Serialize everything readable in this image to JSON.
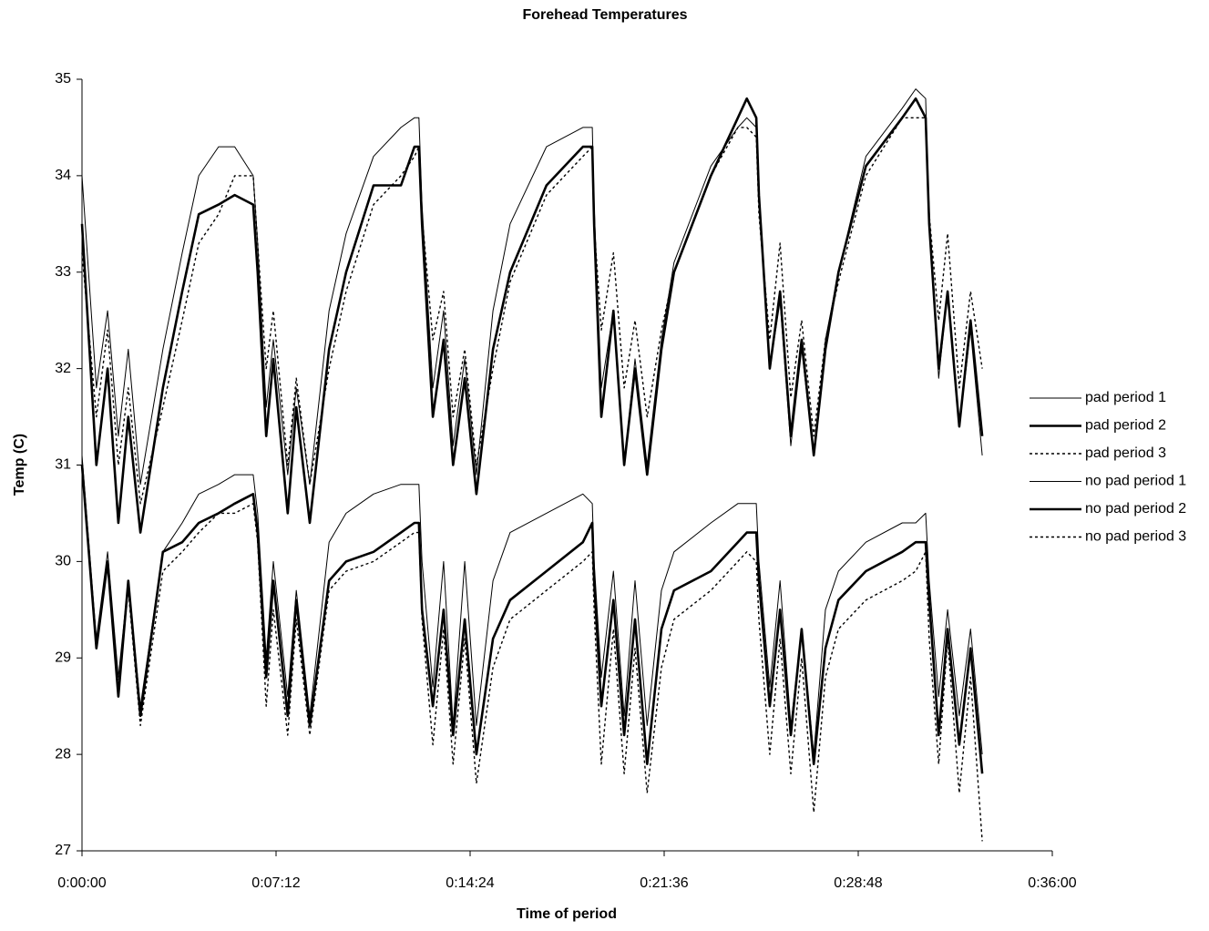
{
  "chart_data": {
    "type": "line",
    "title": "Forehead Temperatures",
    "x_label": "Time of period",
    "y_label": "Temp (C)",
    "x": [
      0,
      32,
      57,
      81,
      103,
      130,
      180,
      223,
      260,
      304,
      340,
      381,
      391,
      410,
      426,
      458,
      477,
      507,
      550,
      588,
      649,
      710,
      740,
      750,
      757,
      781,
      805,
      826,
      852,
      878,
      915,
      953,
      1034,
      1115,
      1136,
      1140,
      1156,
      1183,
      1207,
      1231,
      1258,
      1290,
      1318,
      1400,
      1460,
      1480,
      1501,
      1507,
      1531,
      1554,
      1578,
      1602,
      1629,
      1655,
      1684,
      1745,
      1826,
      1856,
      1878,
      1886,
      1907,
      1927,
      1953,
      1978,
      2004
    ],
    "series": [
      {
        "name": "pad period 1",
        "color": "#000000",
        "line_width": 1,
        "dashed": false,
        "values": [
          34.0,
          31.8,
          32.6,
          31.3,
          32.2,
          30.8,
          32.2,
          33.2,
          34.0,
          34.3,
          34.3,
          34.0,
          33.3,
          31.6,
          32.3,
          30.9,
          31.8,
          30.8,
          32.6,
          33.4,
          34.2,
          34.5,
          34.6,
          34.6,
          33.7,
          31.8,
          32.6,
          31.2,
          32.1,
          30.9,
          32.6,
          33.5,
          34.3,
          34.5,
          34.5,
          33.7,
          31.8,
          32.6,
          31.0,
          32.1,
          31.0,
          32.3,
          33.1,
          34.1,
          34.5,
          34.6,
          34.5,
          33.7,
          32.0,
          32.7,
          31.2,
          32.2,
          31.1,
          32.3,
          33.0,
          34.2,
          34.7,
          34.9,
          34.8,
          33.5,
          31.9,
          32.8,
          31.4,
          32.4,
          31.1
        ]
      },
      {
        "name": "pad period 2",
        "color": "#000000",
        "line_width": 2.6,
        "dashed": false,
        "values": [
          33.5,
          31.0,
          32.0,
          30.4,
          31.5,
          30.3,
          31.8,
          32.8,
          33.6,
          33.7,
          33.8,
          33.7,
          33.0,
          31.3,
          32.1,
          30.5,
          31.6,
          30.4,
          32.2,
          33.0,
          33.9,
          33.9,
          34.3,
          34.3,
          33.5,
          31.5,
          32.3,
          31.0,
          31.9,
          30.7,
          32.2,
          33.0,
          33.9,
          34.3,
          34.3,
          33.5,
          31.5,
          32.6,
          31.0,
          32.0,
          30.9,
          32.2,
          33.0,
          34.0,
          34.6,
          34.8,
          34.6,
          33.8,
          32.0,
          32.8,
          31.3,
          32.3,
          31.1,
          32.2,
          33.0,
          34.1,
          34.6,
          34.8,
          34.6,
          33.5,
          32.0,
          32.8,
          31.4,
          32.5,
          31.3
        ]
      },
      {
        "name": "pad period 3",
        "color": "#000000",
        "line_width": 1.4,
        "dashed": true,
        "values": [
          33.2,
          31.5,
          32.4,
          31.0,
          31.8,
          30.6,
          31.6,
          32.5,
          33.3,
          33.6,
          34.0,
          34.0,
          33.3,
          32.0,
          32.6,
          31.0,
          31.9,
          30.8,
          32.0,
          32.8,
          33.7,
          34.0,
          34.2,
          34.3,
          33.6,
          32.3,
          32.8,
          31.5,
          32.2,
          31.0,
          32.0,
          32.9,
          33.8,
          34.2,
          34.3,
          33.5,
          32.4,
          33.2,
          31.8,
          32.5,
          31.5,
          32.4,
          33.0,
          34.0,
          34.5,
          34.5,
          34.4,
          33.6,
          32.3,
          33.3,
          31.7,
          32.5,
          31.3,
          32.3,
          32.9,
          34.0,
          34.6,
          34.6,
          34.6,
          33.6,
          32.5,
          33.4,
          31.8,
          32.8,
          32.0
        ]
      },
      {
        "name": "no pad period 1",
        "color": "#000000",
        "line_width": 1,
        "dashed": false,
        "values": [
          31.1,
          29.2,
          30.1,
          28.8,
          29.8,
          28.5,
          30.1,
          30.4,
          30.7,
          30.8,
          30.9,
          30.9,
          30.5,
          29.0,
          30.0,
          28.6,
          29.7,
          28.4,
          30.2,
          30.5,
          30.7,
          30.8,
          30.8,
          30.8,
          30.0,
          28.7,
          30.0,
          28.3,
          30.0,
          28.3,
          29.8,
          30.3,
          30.5,
          30.7,
          30.6,
          30.0,
          28.8,
          29.9,
          28.4,
          29.8,
          28.3,
          29.7,
          30.1,
          30.4,
          30.6,
          30.6,
          30.6,
          30.0,
          28.7,
          29.8,
          28.3,
          29.3,
          28.0,
          29.5,
          29.9,
          30.2,
          30.4,
          30.4,
          30.5,
          29.8,
          28.6,
          29.5,
          28.4,
          29.3,
          28.0
        ]
      },
      {
        "name": "no pad period 2",
        "color": "#000000",
        "line_width": 2.6,
        "dashed": false,
        "values": [
          31.0,
          29.1,
          30.0,
          28.6,
          29.8,
          28.4,
          30.1,
          30.2,
          30.4,
          30.5,
          30.6,
          30.7,
          30.3,
          28.8,
          29.8,
          28.4,
          29.6,
          28.3,
          29.8,
          30.0,
          30.1,
          30.3,
          30.4,
          30.4,
          29.5,
          28.5,
          29.5,
          28.2,
          29.4,
          28.0,
          29.2,
          29.6,
          29.9,
          30.2,
          30.4,
          29.8,
          28.5,
          29.6,
          28.2,
          29.4,
          27.9,
          29.3,
          29.7,
          29.9,
          30.2,
          30.3,
          30.3,
          29.8,
          28.5,
          29.5,
          28.2,
          29.3,
          27.9,
          29.1,
          29.6,
          29.9,
          30.1,
          30.2,
          30.2,
          29.6,
          28.2,
          29.3,
          28.1,
          29.1,
          27.8
        ]
      },
      {
        "name": "no pad period 3",
        "color": "#000000",
        "line_width": 1.4,
        "dashed": true,
        "values": [
          31.0,
          29.1,
          30.0,
          28.7,
          29.7,
          28.3,
          29.9,
          30.1,
          30.3,
          30.5,
          30.5,
          30.6,
          30.2,
          28.5,
          29.5,
          28.2,
          29.4,
          28.2,
          29.7,
          29.9,
          30.0,
          30.2,
          30.3,
          30.3,
          29.4,
          28.1,
          29.3,
          27.9,
          29.2,
          27.7,
          28.9,
          29.4,
          29.7,
          30.0,
          30.1,
          29.5,
          27.9,
          29.3,
          27.8,
          29.1,
          27.6,
          28.9,
          29.4,
          29.7,
          30.0,
          30.1,
          30.0,
          29.4,
          28.0,
          29.2,
          27.8,
          29.0,
          27.4,
          28.8,
          29.3,
          29.6,
          29.8,
          29.9,
          30.1,
          29.2,
          27.9,
          29.2,
          27.6,
          28.8,
          27.1
        ]
      }
    ],
    "xlim": [
      0,
      2160
    ],
    "xticks": [
      {
        "value": 0,
        "label": "0:00:00"
      },
      {
        "value": 432,
        "label": "0:07:12"
      },
      {
        "value": 864,
        "label": "0:14:24"
      },
      {
        "value": 1296,
        "label": "0:21:36"
      },
      {
        "value": 1728,
        "label": "0:28:48"
      },
      {
        "value": 2160,
        "label": "0:36:00"
      }
    ],
    "ylim": [
      27,
      35
    ],
    "yticks": [
      27,
      28,
      29,
      30,
      31,
      32,
      33,
      34,
      35
    ],
    "grid": false,
    "legend": "right"
  }
}
